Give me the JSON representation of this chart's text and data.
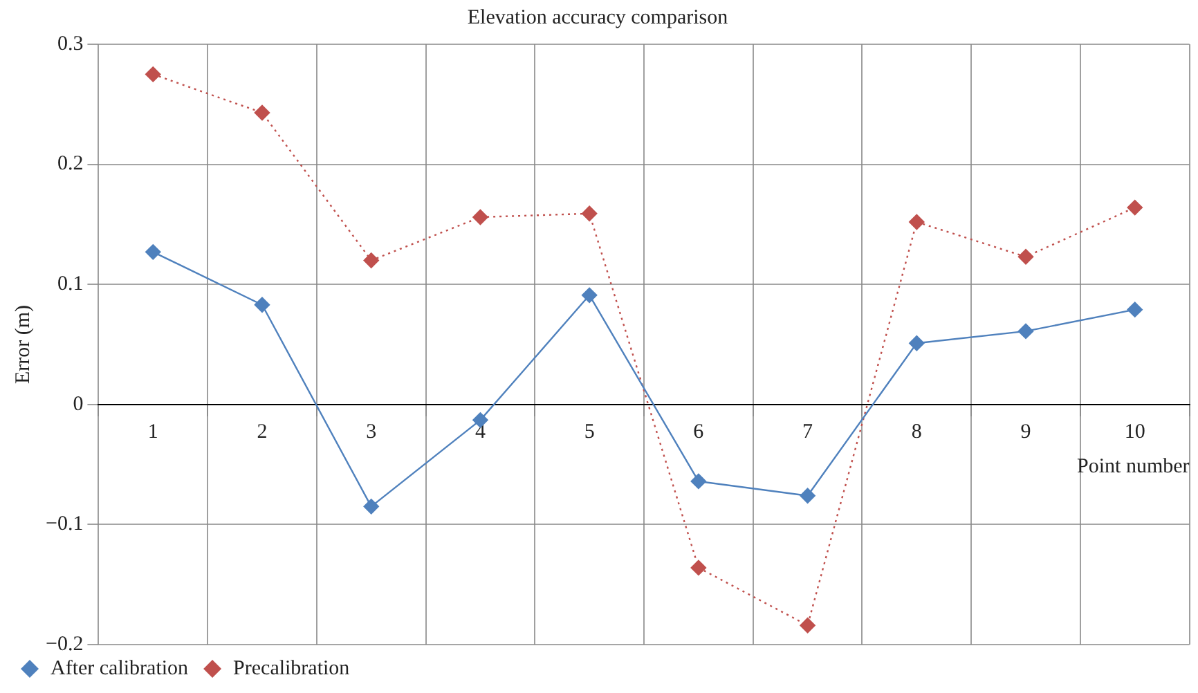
{
  "chart_data": {
    "type": "line",
    "title": "Elevation accuracy comparison",
    "xlabel": "Point number",
    "ylabel": "Error (m)",
    "categories": [
      "1",
      "2",
      "3",
      "4",
      "5",
      "6",
      "7",
      "8",
      "9",
      "10"
    ],
    "series": [
      {
        "name": "After calibration",
        "color": "#4f81bd",
        "line_style": "solid",
        "values": [
          0.127,
          0.083,
          -0.085,
          -0.013,
          0.091,
          -0.064,
          -0.076,
          0.051,
          0.061,
          0.079
        ]
      },
      {
        "name": "Precalibration",
        "color": "#c0504d",
        "line_style": "dotted",
        "values": [
          0.275,
          0.243,
          0.12,
          0.156,
          0.159,
          -0.136,
          -0.184,
          0.152,
          0.123,
          0.164
        ]
      }
    ],
    "ylim": [
      -0.2,
      0.3
    ],
    "yticks": [
      {
        "value": -0.2,
        "label": "−0.2"
      },
      {
        "value": -0.1,
        "label": "−0.1"
      },
      0,
      0.1,
      0.2,
      0.3
    ],
    "grid": true,
    "legend": "bottom left",
    "marker": "diamond"
  }
}
